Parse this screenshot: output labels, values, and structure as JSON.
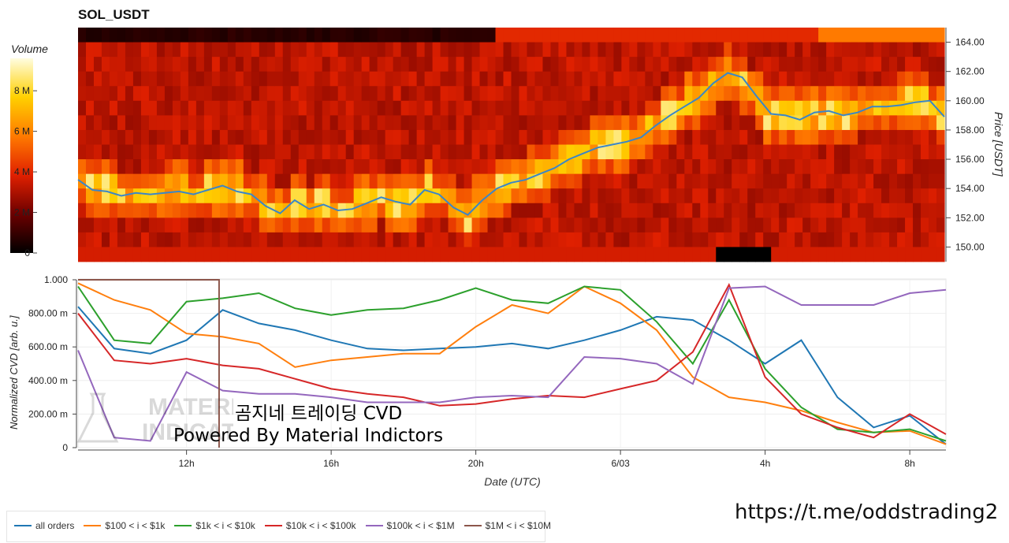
{
  "page": {
    "title": "SOL_USDT",
    "overlay_line1": "곰지네 트레이딩 CVD",
    "overlay_line2": "Powered By Material Indictors",
    "url_text": "https://t.me/oddstrading2",
    "watermark_text": "MATERIAL INDICATORS"
  },
  "colors": {
    "all_orders": "#1f77b4",
    "band_100_1k": "#ff7f0e",
    "band_1k_10k": "#2ca02c",
    "band_10k_100k": "#d62728",
    "band_100k_1m": "#9467bd",
    "band_1m_10m": "#8c564b"
  },
  "chart_data": [
    {
      "type": "heatmap",
      "title": "SOL_USDT",
      "ylabel": "Price [USDT]",
      "y_ticks": [
        "150.00",
        "152.00",
        "154.00",
        "156.00",
        "158.00",
        "160.00",
        "162.00",
        "164.00"
      ],
      "ylim": [
        149,
        165
      ],
      "colorbar": {
        "label": "Volume",
        "ticks": [
          "0",
          "2 M",
          "4 M",
          "6 M",
          "8 M"
        ],
        "range": [
          0,
          9500000
        ]
      },
      "price_series": {
        "name": "price",
        "t": [
          0,
          1,
          2,
          3,
          4,
          5,
          6,
          7,
          8,
          9,
          10,
          11,
          12,
          13,
          14,
          15,
          16,
          17,
          18,
          19,
          20,
          21,
          22,
          23,
          24,
          25,
          26,
          27,
          28,
          29,
          30,
          31,
          32,
          33,
          34,
          35,
          36,
          37,
          38,
          39,
          40,
          41,
          42,
          43,
          44,
          45,
          46,
          47,
          48,
          49,
          50,
          51,
          52,
          53,
          54,
          55,
          56,
          57,
          58,
          59,
          60
        ],
        "values": [
          154.6,
          153.9,
          153.8,
          153.5,
          153.7,
          153.6,
          153.7,
          153.8,
          153.6,
          153.9,
          154.2,
          153.8,
          153.6,
          152.8,
          152.3,
          153.2,
          152.6,
          152.9,
          152.5,
          152.6,
          153.0,
          153.4,
          153.1,
          152.9,
          153.9,
          153.6,
          152.7,
          152.2,
          153.2,
          154.0,
          154.4,
          154.6,
          155.0,
          155.4,
          156.0,
          156.4,
          156.8,
          157.0,
          157.2,
          157.5,
          158.3,
          159.0,
          159.6,
          160.2,
          161.2,
          161.9,
          161.6,
          160.3,
          159.1,
          159.0,
          158.7,
          159.2,
          159.3,
          159.0,
          159.2,
          159.6,
          159.6,
          159.7,
          159.9,
          160.0,
          158.9
        ]
      },
      "x_range": [
        "9h",
        "8.4h next day"
      ]
    },
    {
      "type": "line",
      "xlabel": "Date (UTC)",
      "ylabel": "Normalized CVD [arb. u.]",
      "ylim": [
        0,
        1000
      ],
      "y_ticks": [
        "0",
        "200.00 m",
        "400.00 m",
        "600.00 m",
        "800.00 m",
        "1.000"
      ],
      "x_ticks": [
        "12h",
        "16h",
        "20h",
        "6/03",
        "4h",
        "8h"
      ],
      "x_hours": [
        0,
        1,
        2,
        3,
        4,
        5,
        6,
        7,
        8,
        9,
        10,
        11,
        12,
        13,
        14,
        15,
        16,
        17,
        18,
        19,
        20,
        21,
        22,
        23,
        24
      ],
      "series": [
        {
          "name": "all orders",
          "values": [
            840,
            590,
            560,
            640,
            820,
            740,
            700,
            640,
            590,
            580,
            590,
            600,
            620,
            590,
            640,
            700,
            780,
            760,
            640,
            500,
            640,
            300,
            120,
            190,
            20
          ]
        },
        {
          "name": "$100 < i < $1k",
          "values": [
            980,
            880,
            820,
            680,
            660,
            620,
            480,
            520,
            540,
            560,
            560,
            720,
            850,
            800,
            960,
            860,
            700,
            420,
            300,
            270,
            220,
            150,
            90,
            100,
            20
          ]
        },
        {
          "name": "$1k < i < $10k",
          "values": [
            960,
            640,
            620,
            870,
            890,
            920,
            830,
            790,
            820,
            830,
            880,
            950,
            880,
            860,
            960,
            940,
            750,
            500,
            880,
            470,
            240,
            110,
            90,
            110,
            40
          ]
        },
        {
          "name": "$10k < i < $100k",
          "values": [
            800,
            520,
            500,
            530,
            490,
            470,
            410,
            350,
            320,
            300,
            250,
            260,
            290,
            310,
            300,
            350,
            400,
            570,
            970,
            420,
            200,
            120,
            60,
            200,
            80
          ]
        },
        {
          "name": "$100k < i < $1M",
          "values": [
            580,
            60,
            40,
            450,
            340,
            320,
            320,
            300,
            270,
            270,
            270,
            300,
            310,
            300,
            540,
            530,
            500,
            380,
            950,
            960,
            850,
            850,
            850,
            920,
            940
          ]
        },
        {
          "name": "$1M < i < $10M",
          "values": [
            1000,
            1000,
            1000,
            1000,
            0,
            null,
            null,
            null,
            null,
            null,
            null,
            null,
            null,
            null,
            null,
            null,
            null,
            null,
            null,
            null,
            null,
            null,
            null,
            null,
            null
          ]
        }
      ]
    }
  ]
}
